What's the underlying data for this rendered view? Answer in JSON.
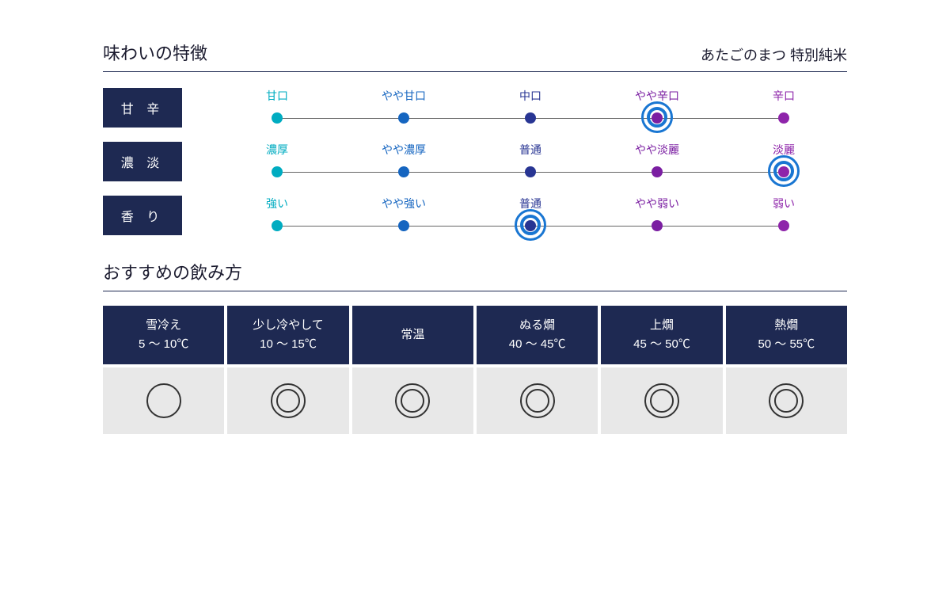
{
  "colors": {
    "title": "#1a1a2e",
    "subtitle": "#1a1a2e",
    "rule": "#1e2952",
    "label_box_bg": "#1e2952",
    "scale_line": "#666666",
    "highlight_ring": "#1976d2",
    "temp_head_bg": "#1e2952",
    "temp_cell_bg": "#e8e8e8",
    "mark_color": "#333333"
  },
  "title": "味わいの特徴",
  "subtitle": "あたごのまつ 特別純米",
  "point_colors": [
    "#00acc1",
    "#1565c0",
    "#283593",
    "#7b1fa2",
    "#8e24aa"
  ],
  "scales": [
    {
      "name": "甘 辛",
      "labels": [
        "甘口",
        "やや甘口",
        "中口",
        "やや辛口",
        "辛口"
      ],
      "selected_index": 3
    },
    {
      "name": "濃 淡",
      "labels": [
        "濃厚",
        "やや濃厚",
        "普通",
        "やや淡麗",
        "淡麗"
      ],
      "selected_index": 4
    },
    {
      "name": "香 り",
      "labels": [
        "強い",
        "やや強い",
        "普通",
        "やや弱い",
        "弱い"
      ],
      "selected_index": 2
    }
  ],
  "section2_title": "おすすめの飲み方",
  "temp_columns": [
    {
      "name": "雪冷え",
      "range": "5 ～ 10℃",
      "mark": "single"
    },
    {
      "name": "少し冷やして",
      "range": "10 ～ 15℃",
      "mark": "double"
    },
    {
      "name": "常温",
      "range": "",
      "mark": "double"
    },
    {
      "name": "ぬる燗",
      "range": "40 ～ 45℃",
      "mark": "double"
    },
    {
      "name": "上燗",
      "range": "45 ～ 50℃",
      "mark": "double"
    },
    {
      "name": "熱燗",
      "range": "50 ～ 55℃",
      "mark": "double"
    }
  ]
}
